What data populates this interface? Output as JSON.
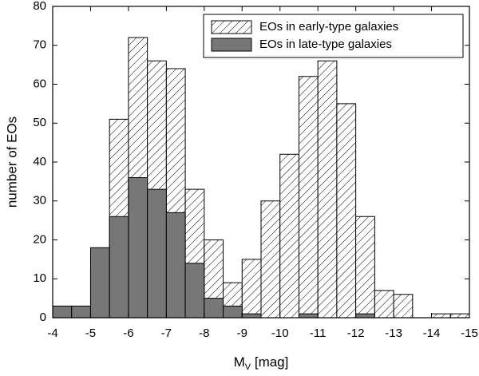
{
  "chart_data": {
    "type": "histogram",
    "x_label": [
      "M",
      "V",
      " [mag]"
    ],
    "y_label": "number of EOs",
    "bins": [
      -4,
      -4.5,
      -5,
      -5.5,
      -6,
      -6.5,
      -7,
      -7.5,
      -8,
      -8.5,
      -9,
      -9.5,
      -10,
      -10.5,
      -11,
      -11.5,
      -12,
      -12.5,
      -13,
      -13.5,
      -14,
      -14.5,
      -15
    ],
    "series": [
      {
        "name": "EOs in early-type galaxies",
        "color": "#ffffff",
        "pattern": "hatch",
        "values": [
          0,
          0,
          13,
          51,
          72,
          66,
          64,
          33,
          20,
          9,
          15,
          30,
          42,
          62,
          66,
          55,
          26,
          7,
          6,
          0,
          1,
          1
        ]
      },
      {
        "name": "EOs in late-type galaxies",
        "color": "#777777",
        "values": [
          3,
          3,
          18,
          26,
          36,
          33,
          27,
          14,
          5,
          3,
          1,
          0,
          0,
          1,
          0,
          0,
          1,
          0,
          0,
          0,
          0,
          0
        ]
      }
    ],
    "xlim": [
      -4,
      -15
    ],
    "xticks": [
      -4,
      -5,
      -6,
      -7,
      -8,
      -9,
      -10,
      -11,
      -12,
      -13,
      -14,
      -15
    ],
    "ylim": [
      0,
      80
    ],
    "yticks": [
      0,
      10,
      20,
      30,
      40,
      50,
      60,
      70,
      80
    ],
    "legend": "upper right"
  }
}
